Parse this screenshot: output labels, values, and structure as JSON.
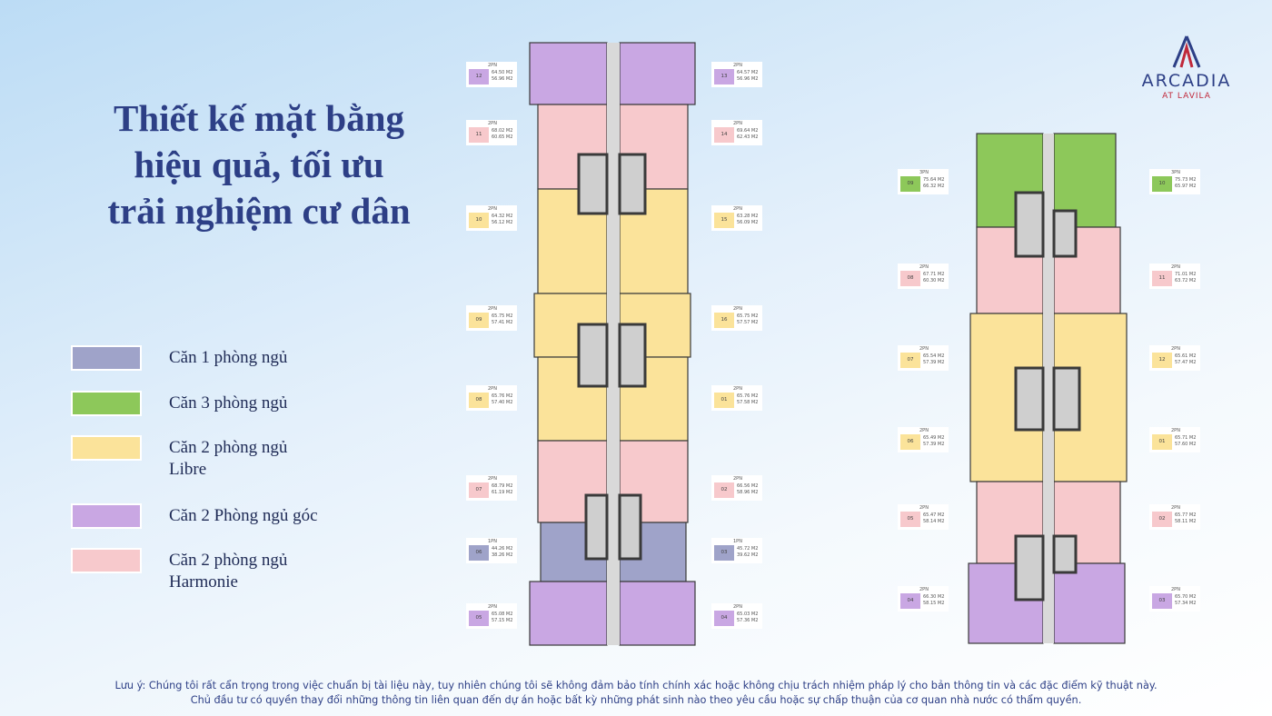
{
  "header": {
    "title_lines": [
      "Thiết kế mặt bằng",
      "hiệu quả, tối ưu",
      "trải nghiệm cư dân"
    ]
  },
  "logo": {
    "name": "ARCADIA",
    "subtitle": "AT LAVILA"
  },
  "legend": {
    "items": [
      {
        "lines": [
          "Căn 1 phòng ngủ"
        ]
      },
      {
        "lines": [
          "Căn 3 phòng ngủ"
        ]
      },
      {
        "lines": [
          "Căn 2 phòng ngủ",
          "Libre"
        ]
      },
      {
        "lines": [
          "Căn 2 Phòng ngủ góc"
        ]
      },
      {
        "lines": [
          "Căn 2 phòng ngủ",
          "Harmonie"
        ]
      }
    ]
  },
  "buildings": [
    {
      "units": [
        {
          "type": "2PN",
          "code": "12",
          "gross": "64.50 M2",
          "net": "56.96 M2"
        },
        {
          "type": "2PN",
          "code": "11",
          "gross": "68.02 M2",
          "net": "60.65 M2"
        },
        {
          "type": "2PN",
          "code": "10",
          "gross": "64.32 M2",
          "net": "56.12 M2"
        },
        {
          "type": "2PN",
          "code": "09",
          "gross": "65.75 M2",
          "net": "57.41 M2"
        },
        {
          "type": "2PN",
          "code": "08",
          "gross": "65.76 M2",
          "net": "57.40 M2"
        },
        {
          "type": "2PN",
          "code": "07",
          "gross": "68.79 M2",
          "net": "61.19 M2"
        },
        {
          "type": "1PN",
          "code": "06",
          "gross": "44.26 M2",
          "net": "38.26 M2"
        },
        {
          "type": "2PN",
          "code": "05",
          "gross": "65.08 M2",
          "net": "57.15 M2"
        },
        {
          "type": "2PN",
          "code": "13",
          "gross": "64.57 M2",
          "net": "56.96 M2"
        },
        {
          "type": "2PN",
          "code": "14",
          "gross": "69.64 M2",
          "net": "62.43 M2"
        },
        {
          "type": "2PN",
          "code": "15",
          "gross": "63.28 M2",
          "net": "56.09 M2"
        },
        {
          "type": "2PN",
          "code": "16",
          "gross": "65.75 M2",
          "net": "57.57 M2"
        },
        {
          "type": "2PN",
          "code": "01",
          "gross": "65.76 M2",
          "net": "57.58 M2"
        },
        {
          "type": "2PN",
          "code": "02",
          "gross": "66.56 M2",
          "net": "58.96 M2"
        },
        {
          "type": "1PN",
          "code": "03",
          "gross": "45.72 M2",
          "net": "39.62 M2"
        },
        {
          "type": "2PN",
          "code": "04",
          "gross": "65.03 M2",
          "net": "57.36 M2"
        }
      ]
    },
    {
      "units": [
        {
          "type": "3PN",
          "code": "09",
          "gross": "75.64 M2",
          "net": "66.32 M2"
        },
        {
          "type": "2PN",
          "code": "08",
          "gross": "67.71 M2",
          "net": "60.30 M2"
        },
        {
          "type": "2PN",
          "code": "07",
          "gross": "65.54 M2",
          "net": "57.39 M2"
        },
        {
          "type": "2PN",
          "code": "06",
          "gross": "65.49 M2",
          "net": "57.39 M2"
        },
        {
          "type": "2PN",
          "code": "05",
          "gross": "65.47 M2",
          "net": "58.14 M2"
        },
        {
          "type": "2PN",
          "code": "04",
          "gross": "66.30 M2",
          "net": "58.15 M2"
        },
        {
          "type": "3PN",
          "code": "10",
          "gross": "75.73 M2",
          "net": "65.97 M2"
        },
        {
          "type": "2PN",
          "code": "11",
          "gross": "71.01 M2",
          "net": "63.72 M2"
        },
        {
          "type": "2PN",
          "code": "12",
          "gross": "65.61 M2",
          "net": "57.47 M2"
        },
        {
          "type": "2PN",
          "code": "01",
          "gross": "65.71 M2",
          "net": "57.60 M2"
        },
        {
          "type": "2PN",
          "code": "02",
          "gross": "65.77 M2",
          "net": "58.11 M2"
        },
        {
          "type": "2PN",
          "code": "03",
          "gross": "65.70 M2",
          "net": "57.34 M2"
        }
      ]
    }
  ],
  "footnote": {
    "lines": [
      "Lưu ý: Chúng tôi rất cẩn trọng trong việc chuẩn bị tài liệu này, tuy nhiên chúng tôi sẽ không đảm bảo tính chính xác hoặc không chịu trách nhiệm pháp lý cho bản thông tin và các đặc điểm kỹ thuật này.",
      "Chủ đầu tư có quyền thay đổi những thông tin liên quan đến dự án hoặc bất kỳ những phát sinh nào theo yêu cầu hoặc sự chấp thuận của cơ quan nhà nước có thẩm quyền."
    ]
  }
}
